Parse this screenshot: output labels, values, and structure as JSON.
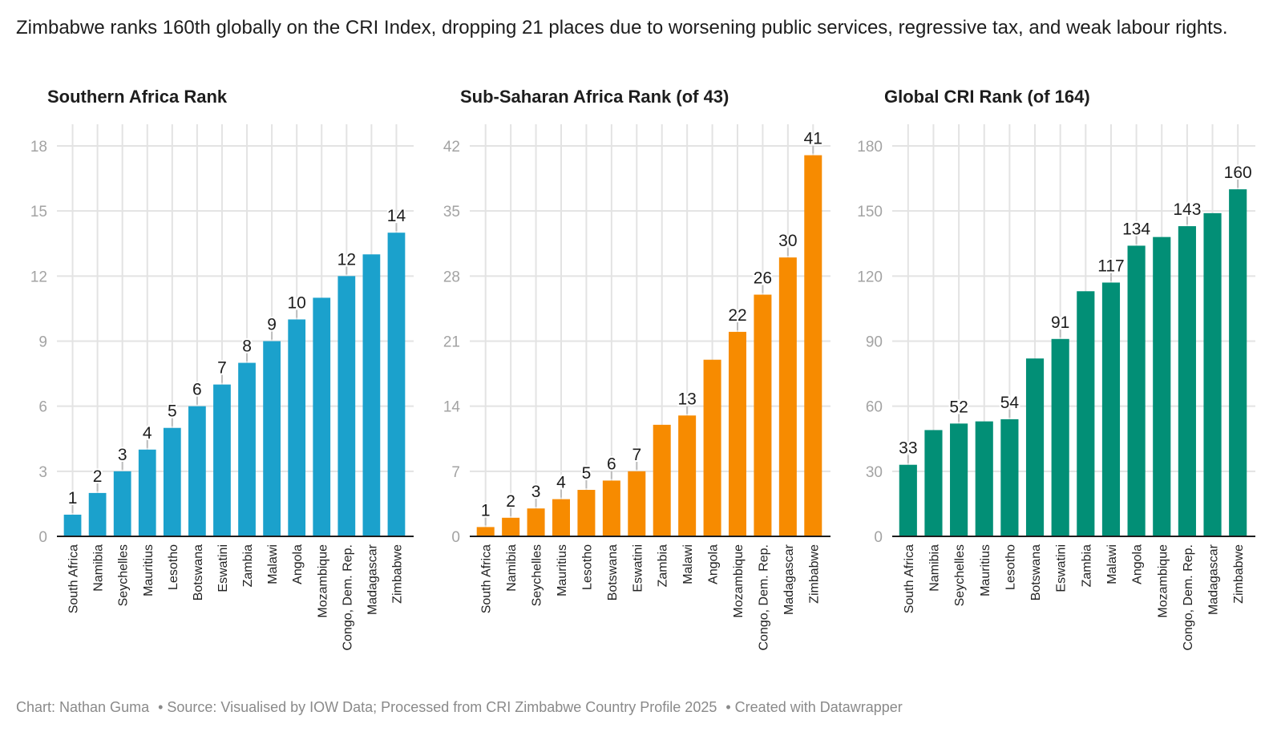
{
  "headline": "Zimbabwe ranks 160th globally on the CRI Index, dropping 21 places due to worsening public services, regressive tax, and weak labour rights.",
  "footer": {
    "credit": "Chart: Nathan Guma",
    "source": "• Source: Visualised by IOW Data; Processed from CRI Zimbabwe Country Profile 2025",
    "tool": "• Created with Datawrapper"
  },
  "chart_data": [
    {
      "type": "bar",
      "title": "Southern Africa Rank",
      "color": "#1ba1cc",
      "categories": [
        "South Africa",
        "Namibia",
        "Seychelles",
        "Mauritius",
        "Lesotho",
        "Botswana",
        "Eswatini",
        "Zambia",
        "Malawi",
        "Angola",
        "Mozambique",
        "Congo, Dem. Rep.",
        "Madagascar",
        "Zimbabwe"
      ],
      "values": [
        1,
        2,
        3,
        4,
        5,
        6,
        7,
        8,
        9,
        10,
        11,
        12,
        13,
        14
      ],
      "labeled": [
        true,
        true,
        true,
        true,
        true,
        true,
        true,
        true,
        true,
        true,
        false,
        true,
        false,
        true
      ],
      "yticks": [
        0,
        3,
        6,
        9,
        12,
        15,
        18
      ],
      "ylim": [
        0,
        18
      ],
      "grid": true,
      "xlabel": "",
      "ylabel": ""
    },
    {
      "type": "bar",
      "title": "Sub-Saharan Africa Rank (of 43)",
      "color": "#f78b00",
      "categories": [
        "South Africa",
        "Namibia",
        "Seychelles",
        "Mauritius",
        "Lesotho",
        "Botswana",
        "Eswatini",
        "Zambia",
        "Malawi",
        "Angola",
        "Mozambique",
        "Congo, Dem. Rep.",
        "Madagascar",
        "Zimbabwe"
      ],
      "values": [
        1,
        2,
        3,
        4,
        5,
        6,
        7,
        12,
        13,
        19,
        22,
        26,
        30,
        41
      ],
      "labeled": [
        true,
        true,
        true,
        true,
        true,
        true,
        true,
        false,
        true,
        false,
        true,
        true,
        true,
        true
      ],
      "yticks": [
        0,
        7,
        14,
        21,
        28,
        35,
        42
      ],
      "ylim": [
        0,
        42
      ],
      "grid": true,
      "xlabel": "",
      "ylabel": ""
    },
    {
      "type": "bar",
      "title": "Global CRI Rank (of 164)",
      "color": "#028f76",
      "categories": [
        "South Africa",
        "Namibia",
        "Seychelles",
        "Mauritius",
        "Lesotho",
        "Botswana",
        "Eswatini",
        "Zambia",
        "Malawi",
        "Angola",
        "Mozambique",
        "Congo, Dem. Rep.",
        "Madagascar",
        "Zimbabwe"
      ],
      "values": [
        33,
        49,
        52,
        53,
        54,
        82,
        91,
        113,
        117,
        134,
        138,
        143,
        149,
        160
      ],
      "labeled": [
        true,
        false,
        true,
        false,
        true,
        false,
        true,
        false,
        true,
        true,
        false,
        true,
        false,
        true
      ],
      "yticks": [
        0,
        30,
        60,
        90,
        120,
        150,
        180
      ],
      "ylim": [
        0,
        180
      ],
      "grid": true,
      "xlabel": "",
      "ylabel": ""
    }
  ]
}
